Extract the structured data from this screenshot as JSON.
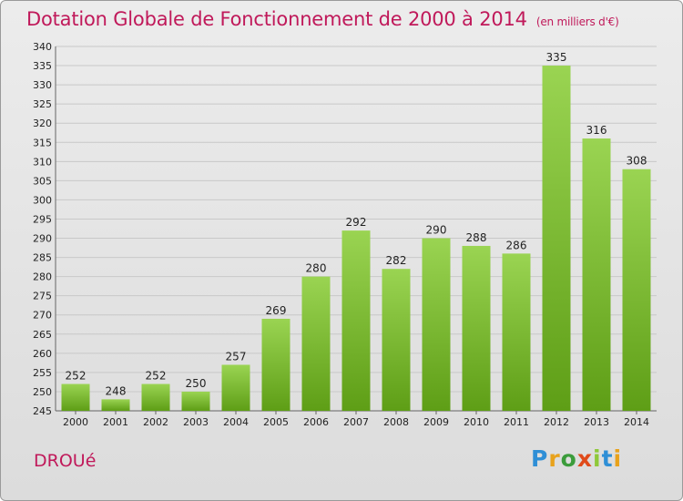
{
  "chart_data": {
    "type": "bar",
    "title": "Dotation Globale de Fonctionnement de 2000 à 2014",
    "subtitle": "(en milliers d'€)",
    "categories": [
      "2000",
      "2001",
      "2002",
      "2003",
      "2004",
      "2005",
      "2006",
      "2007",
      "2008",
      "2009",
      "2010",
      "2011",
      "2012",
      "2013",
      "2014"
    ],
    "values": [
      252,
      248,
      252,
      250,
      257,
      269,
      280,
      292,
      282,
      290,
      288,
      286,
      335,
      316,
      308
    ],
    "ylim": [
      245,
      340
    ],
    "yticks": [
      245,
      250,
      255,
      260,
      265,
      270,
      275,
      280,
      285,
      290,
      295,
      300,
      305,
      310,
      315,
      320,
      325,
      330,
      335,
      340
    ],
    "grid": true,
    "bar_color": "#7cc12d",
    "bar_color_dark": "#5e9e16"
  },
  "footer": {
    "commune": "DROUé",
    "brand": "Proxiti"
  }
}
